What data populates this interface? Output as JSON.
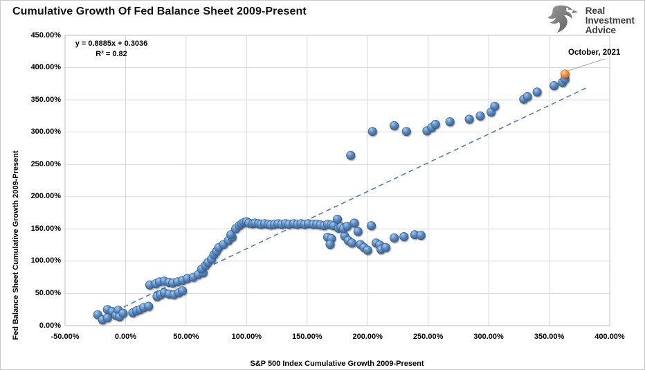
{
  "header": {
    "title": "Cumulative Growth Of Fed Balance Sheet 2009-Present",
    "logo": {
      "lines": [
        "Real",
        "Investment",
        "Advice"
      ]
    }
  },
  "chart_data": {
    "type": "scatter",
    "title": "Cumulative Growth Of Fed Balance Sheet 2009-Present",
    "xlabel": "S&P 500 Index Cumulative Growth 2009-Present",
    "ylabel": "Fed Balance Sheet Cumulative Growth 2009-Present",
    "xlim": [
      -50,
      400
    ],
    "ylim": [
      0,
      450
    ],
    "grid": true,
    "x_ticks": [
      "-50.00%",
      "0.00%",
      "50.00%",
      "100.00%",
      "150.00%",
      "200.00%",
      "250.00%",
      "300.00%",
      "350.00%",
      "400.00%"
    ],
    "y_ticks": [
      "450.00%",
      "400.00%",
      "350.00%",
      "300.00%",
      "250.00%",
      "200.00%",
      "150.00%",
      "100.00%",
      "50.00%",
      "0.00%"
    ],
    "equation": "y = 0.8885x + 0.3036",
    "r_squared": "R² = 0.82",
    "annotation": {
      "label": "October, 2021",
      "point": [
        363,
        390
      ]
    },
    "trendline": {
      "slope": 0.8885,
      "intercept": 0.3036,
      "x_start": -14,
      "x_end": 381,
      "color": "#4a7ebb",
      "style": "dashed"
    },
    "colors": {
      "marker_blue": "#4f81bd",
      "marker_blue_stroke": "#2e568a",
      "marker_orange": "#f79646",
      "marker_orange_stroke": "#b4681f",
      "gridline": "#d9d9d9",
      "plot_border": "#bfbfbf",
      "leader_line": "#a6a6a6"
    },
    "series": [
      {
        "name": "fed-vs-sp500-monthly",
        "color": "#4f81bd",
        "points": [
          [
            -23,
            17
          ],
          [
            -19,
            9
          ],
          [
            -15,
            12
          ],
          [
            -15,
            25
          ],
          [
            -11,
            22
          ],
          [
            -8,
            16
          ],
          [
            -6,
            24
          ],
          [
            -5,
            14
          ],
          [
            -2,
            19
          ],
          [
            6,
            20
          ],
          [
            9,
            23
          ],
          [
            12,
            25
          ],
          [
            15,
            28
          ],
          [
            19,
            30
          ],
          [
            26,
            45
          ],
          [
            29,
            48
          ],
          [
            32,
            51
          ],
          [
            36,
            49
          ],
          [
            40,
            48
          ],
          [
            44,
            51
          ],
          [
            47,
            54
          ],
          [
            20,
            63
          ],
          [
            25,
            65
          ],
          [
            28,
            68
          ],
          [
            32,
            69
          ],
          [
            36,
            67
          ],
          [
            39,
            66
          ],
          [
            43,
            68
          ],
          [
            47,
            70
          ],
          [
            51,
            73
          ],
          [
            56,
            75
          ],
          [
            60,
            79
          ],
          [
            64,
            82
          ],
          [
            63,
            88
          ],
          [
            66,
            93
          ],
          [
            68,
            98
          ],
          [
            71,
            103
          ],
          [
            73,
            110
          ],
          [
            75,
            115
          ],
          [
            77,
            121
          ],
          [
            81,
            126
          ],
          [
            85,
            132
          ],
          [
            88,
            137
          ],
          [
            87,
            141
          ],
          [
            91,
            150
          ],
          [
            94,
            155
          ],
          [
            96,
            158
          ],
          [
            98,
            160
          ],
          [
            100,
            161
          ],
          [
            102,
            159
          ],
          [
            105,
            158
          ],
          [
            107,
            159
          ],
          [
            110,
            158
          ],
          [
            112,
            157
          ],
          [
            115,
            158
          ],
          [
            118,
            157
          ],
          [
            120,
            156
          ],
          [
            123,
            157
          ],
          [
            126,
            158
          ],
          [
            129,
            157
          ],
          [
            132,
            158
          ],
          [
            135,
            157
          ],
          [
            139,
            158
          ],
          [
            142,
            157
          ],
          [
            145,
            158
          ],
          [
            148,
            157
          ],
          [
            151,
            158
          ],
          [
            155,
            157
          ],
          [
            158,
            157
          ],
          [
            161,
            156
          ],
          [
            164,
            155
          ],
          [
            167,
            157
          ],
          [
            170,
            156
          ],
          [
            167,
            137
          ],
          [
            170,
            135
          ],
          [
            169,
            126
          ],
          [
            181,
            139
          ],
          [
            184,
            132
          ],
          [
            187,
            128
          ],
          [
            192,
            146
          ],
          [
            172,
            155
          ],
          [
            175,
            165
          ],
          [
            176,
            151
          ],
          [
            178,
            153
          ],
          [
            180,
            150
          ],
          [
            183,
            154
          ],
          [
            189,
            159
          ],
          [
            194,
            126
          ],
          [
            197,
            121
          ],
          [
            200,
            117
          ],
          [
            203,
            155
          ],
          [
            207,
            128
          ],
          [
            210,
            125
          ],
          [
            211,
            118
          ],
          [
            215,
            121
          ],
          [
            222,
            136
          ],
          [
            230,
            138
          ],
          [
            239,
            141
          ],
          [
            244,
            140
          ],
          [
            186,
            264
          ],
          [
            204,
            301
          ],
          [
            222,
            310
          ],
          [
            232,
            301
          ],
          [
            249,
            302
          ],
          [
            253,
            307
          ],
          [
            256,
            312
          ],
          [
            268,
            316
          ],
          [
            284,
            320
          ],
          [
            293,
            325
          ],
          [
            302,
            331
          ],
          [
            305,
            340
          ],
          [
            329,
            351
          ],
          [
            332,
            355
          ],
          [
            340,
            362
          ],
          [
            354,
            372
          ],
          [
            361,
            377
          ],
          [
            363,
            382
          ]
        ]
      },
      {
        "name": "october-2021",
        "color": "#f79646",
        "points": [
          [
            363,
            390
          ]
        ]
      }
    ]
  }
}
